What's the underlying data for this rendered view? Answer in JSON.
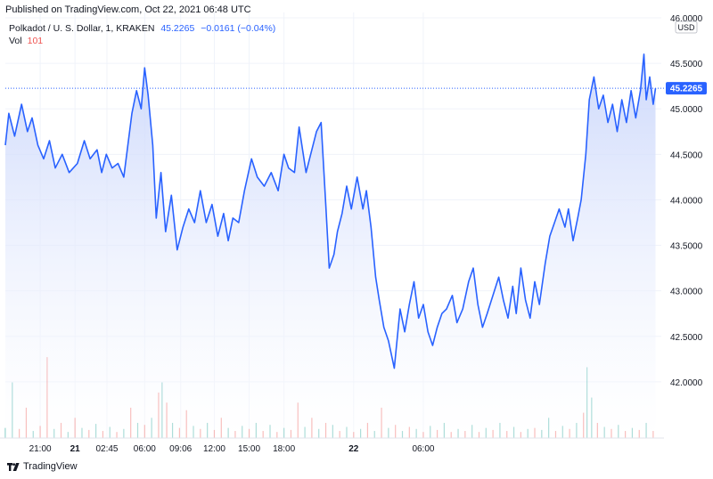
{
  "header": {
    "published": "Published on TradingView.com, Oct 22, 2021 06:48 UTC",
    "symbol": "Polkadot / U. S. Dollar, 1, KRAKEN",
    "last": "45.2265",
    "change": "−0.0161 (−0.04%)",
    "vol_label": "Vol",
    "vol_value": "101"
  },
  "brand": {
    "name": "TradingView",
    "icon": "tradingview-logo-icon"
  },
  "colors": {
    "line": "#2962ff",
    "fill_top": "#c7d4fb",
    "fill_bottom": "#ffffff",
    "vol_up": "#26a69a",
    "vol_down": "#ef5350",
    "price_tag": "#2962ff"
  },
  "chart_data": {
    "type": "area",
    "currency": "USD",
    "last_price_label": "45.2265",
    "last_price": 45.2265,
    "ylim": [
      41.5,
      46.0
    ],
    "y_ticks": [
      "46.0000",
      "45.5000",
      "45.0000",
      "44.5000",
      "44.0000",
      "43.5000",
      "43.0000",
      "42.5000",
      "42.0000"
    ],
    "y_tick_values": [
      46.0,
      45.5,
      45.0,
      44.5,
      44.0,
      43.5,
      43.0,
      42.5,
      42.0
    ],
    "x_ticks": [
      "21:00",
      "21",
      "02:45",
      "06:00",
      "09:06",
      "12:00",
      "15:00",
      "18:00",
      "22",
      "06:00"
    ],
    "x_tick_hours": [
      21.0,
      24.0,
      26.75,
      30.0,
      33.1,
      36.0,
      39.0,
      42.0,
      48.0,
      54.0
    ],
    "x_bold_ticks": [
      "21",
      "22"
    ],
    "grid": true,
    "series": [
      {
        "points": [
          [
            18.0,
            44.6
          ],
          [
            18.3,
            44.95
          ],
          [
            18.8,
            44.7
          ],
          [
            19.4,
            45.05
          ],
          [
            19.9,
            44.75
          ],
          [
            20.3,
            44.9
          ],
          [
            20.8,
            44.6
          ],
          [
            21.3,
            44.45
          ],
          [
            21.8,
            44.65
          ],
          [
            22.3,
            44.35
          ],
          [
            22.9,
            44.5
          ],
          [
            23.5,
            44.3
          ],
          [
            24.2,
            44.4
          ],
          [
            24.8,
            44.65
          ],
          [
            25.3,
            44.45
          ],
          [
            25.9,
            44.55
          ],
          [
            26.3,
            44.3
          ],
          [
            26.7,
            44.5
          ],
          [
            27.2,
            44.35
          ],
          [
            27.7,
            44.4
          ],
          [
            28.2,
            44.25
          ],
          [
            28.9,
            44.95
          ],
          [
            29.3,
            45.2
          ],
          [
            29.7,
            45.0
          ],
          [
            30.0,
            45.45
          ],
          [
            30.3,
            45.15
          ],
          [
            30.7,
            44.6
          ],
          [
            31.0,
            43.8
          ],
          [
            31.4,
            44.3
          ],
          [
            31.8,
            43.65
          ],
          [
            32.3,
            44.05
          ],
          [
            32.8,
            43.45
          ],
          [
            33.3,
            43.7
          ],
          [
            33.8,
            43.9
          ],
          [
            34.3,
            43.75
          ],
          [
            34.8,
            44.1
          ],
          [
            35.3,
            43.75
          ],
          [
            35.8,
            43.95
          ],
          [
            36.3,
            43.6
          ],
          [
            36.8,
            43.85
          ],
          [
            37.2,
            43.55
          ],
          [
            37.6,
            43.8
          ],
          [
            38.1,
            43.75
          ],
          [
            38.6,
            44.1
          ],
          [
            39.2,
            44.45
          ],
          [
            39.7,
            44.25
          ],
          [
            40.3,
            44.15
          ],
          [
            40.9,
            44.3
          ],
          [
            41.5,
            44.1
          ],
          [
            42.0,
            44.5
          ],
          [
            42.4,
            44.35
          ],
          [
            42.9,
            44.3
          ],
          [
            43.3,
            44.8
          ],
          [
            43.6,
            44.55
          ],
          [
            43.9,
            44.3
          ],
          [
            44.3,
            44.5
          ],
          [
            44.8,
            44.75
          ],
          [
            45.2,
            44.85
          ],
          [
            45.6,
            43.95
          ],
          [
            45.9,
            43.25
          ],
          [
            46.3,
            43.4
          ],
          [
            46.6,
            43.65
          ],
          [
            47.0,
            43.85
          ],
          [
            47.4,
            44.15
          ],
          [
            47.8,
            43.9
          ],
          [
            48.3,
            44.25
          ],
          [
            48.8,
            43.9
          ],
          [
            49.1,
            44.1
          ],
          [
            49.5,
            43.7
          ],
          [
            49.9,
            43.15
          ],
          [
            50.2,
            42.9
          ],
          [
            50.6,
            42.6
          ],
          [
            51.0,
            42.45
          ],
          [
            51.5,
            42.15
          ],
          [
            52.0,
            42.8
          ],
          [
            52.4,
            42.55
          ],
          [
            52.8,
            42.85
          ],
          [
            53.2,
            43.1
          ],
          [
            53.6,
            42.7
          ],
          [
            54.0,
            42.85
          ],
          [
            54.4,
            42.55
          ],
          [
            54.8,
            42.4
          ],
          [
            55.2,
            42.6
          ],
          [
            55.6,
            42.75
          ],
          [
            56.0,
            42.8
          ],
          [
            56.5,
            42.95
          ],
          [
            56.9,
            42.65
          ],
          [
            57.4,
            42.8
          ],
          [
            57.9,
            43.1
          ],
          [
            58.3,
            43.25
          ],
          [
            58.7,
            42.85
          ],
          [
            59.1,
            42.6
          ],
          [
            59.5,
            42.75
          ],
          [
            60.0,
            42.95
          ],
          [
            60.5,
            43.15
          ],
          [
            60.9,
            42.9
          ],
          [
            61.3,
            42.7
          ],
          [
            61.7,
            43.05
          ],
          [
            62.0,
            42.75
          ],
          [
            62.4,
            43.25
          ],
          [
            62.8,
            42.9
          ],
          [
            63.2,
            42.7
          ],
          [
            63.6,
            43.1
          ],
          [
            64.0,
            42.85
          ],
          [
            64.5,
            43.3
          ],
          [
            64.9,
            43.6
          ],
          [
            65.3,
            43.75
          ],
          [
            65.7,
            43.9
          ],
          [
            66.2,
            43.7
          ],
          [
            66.5,
            43.9
          ],
          [
            66.9,
            43.55
          ],
          [
            67.3,
            43.8
          ],
          [
            67.6,
            44.0
          ],
          [
            68.0,
            44.5
          ],
          [
            68.3,
            45.1
          ],
          [
            68.7,
            45.35
          ],
          [
            69.1,
            45.0
          ],
          [
            69.5,
            45.15
          ],
          [
            69.9,
            44.85
          ],
          [
            70.3,
            45.05
          ],
          [
            70.7,
            44.75
          ],
          [
            71.1,
            45.1
          ],
          [
            71.5,
            44.85
          ],
          [
            71.9,
            45.2
          ],
          [
            72.3,
            44.9
          ],
          [
            72.7,
            45.2
          ],
          [
            73.0,
            45.6
          ],
          [
            73.2,
            45.1
          ],
          [
            73.5,
            45.35
          ],
          [
            73.8,
            45.05
          ],
          [
            74.0,
            45.2265
          ]
        ]
      }
    ],
    "volume": {
      "x_range": [
        18.0,
        74.0
      ],
      "vol_max": 220,
      "bars": [
        {
          "t": 18.0,
          "v": 20,
          "d": "up"
        },
        {
          "t": 18.6,
          "v": 110,
          "d": "up"
        },
        {
          "t": 19.2,
          "v": 18,
          "d": "down"
        },
        {
          "t": 19.8,
          "v": 60,
          "d": "down"
        },
        {
          "t": 20.4,
          "v": 14,
          "d": "up"
        },
        {
          "t": 21.0,
          "v": 24,
          "d": "down"
        },
        {
          "t": 21.6,
          "v": 160,
          "d": "down"
        },
        {
          "t": 22.2,
          "v": 18,
          "d": "up"
        },
        {
          "t": 22.8,
          "v": 30,
          "d": "down"
        },
        {
          "t": 23.4,
          "v": 12,
          "d": "up"
        },
        {
          "t": 24.0,
          "v": 40,
          "d": "down"
        },
        {
          "t": 24.6,
          "v": 20,
          "d": "up"
        },
        {
          "t": 25.2,
          "v": 16,
          "d": "down"
        },
        {
          "t": 25.8,
          "v": 28,
          "d": "up"
        },
        {
          "t": 26.4,
          "v": 14,
          "d": "down"
        },
        {
          "t": 27.0,
          "v": 22,
          "d": "up"
        },
        {
          "t": 27.6,
          "v": 12,
          "d": "down"
        },
        {
          "t": 28.2,
          "v": 18,
          "d": "up"
        },
        {
          "t": 28.8,
          "v": 60,
          "d": "down"
        },
        {
          "t": 29.4,
          "v": 30,
          "d": "up"
        },
        {
          "t": 30.0,
          "v": 26,
          "d": "down"
        },
        {
          "t": 30.6,
          "v": 40,
          "d": "up"
        },
        {
          "t": 31.2,
          "v": 90,
          "d": "down"
        },
        {
          "t": 31.5,
          "v": 110,
          "d": "up"
        },
        {
          "t": 31.9,
          "v": 70,
          "d": "down"
        },
        {
          "t": 32.4,
          "v": 30,
          "d": "up"
        },
        {
          "t": 33.0,
          "v": 20,
          "d": "down"
        },
        {
          "t": 33.6,
          "v": 55,
          "d": "down"
        },
        {
          "t": 34.2,
          "v": 24,
          "d": "up"
        },
        {
          "t": 34.8,
          "v": 18,
          "d": "down"
        },
        {
          "t": 35.4,
          "v": 30,
          "d": "up"
        },
        {
          "t": 36.0,
          "v": 16,
          "d": "down"
        },
        {
          "t": 36.6,
          "v": 40,
          "d": "down"
        },
        {
          "t": 37.2,
          "v": 20,
          "d": "up"
        },
        {
          "t": 37.8,
          "v": 14,
          "d": "down"
        },
        {
          "t": 38.4,
          "v": 24,
          "d": "up"
        },
        {
          "t": 39.0,
          "v": 18,
          "d": "down"
        },
        {
          "t": 39.6,
          "v": 30,
          "d": "up"
        },
        {
          "t": 40.2,
          "v": 14,
          "d": "down"
        },
        {
          "t": 40.8,
          "v": 26,
          "d": "up"
        },
        {
          "t": 41.4,
          "v": 12,
          "d": "down"
        },
        {
          "t": 42.0,
          "v": 20,
          "d": "up"
        },
        {
          "t": 42.6,
          "v": 16,
          "d": "down"
        },
        {
          "t": 43.2,
          "v": 70,
          "d": "down"
        },
        {
          "t": 43.8,
          "v": 22,
          "d": "up"
        },
        {
          "t": 44.4,
          "v": 40,
          "d": "down"
        },
        {
          "t": 45.0,
          "v": 18,
          "d": "up"
        },
        {
          "t": 45.6,
          "v": 30,
          "d": "down"
        },
        {
          "t": 46.2,
          "v": 26,
          "d": "up"
        },
        {
          "t": 46.8,
          "v": 14,
          "d": "down"
        },
        {
          "t": 47.4,
          "v": 22,
          "d": "up"
        },
        {
          "t": 48.0,
          "v": 12,
          "d": "down"
        },
        {
          "t": 48.6,
          "v": 18,
          "d": "up"
        },
        {
          "t": 49.2,
          "v": 30,
          "d": "down"
        },
        {
          "t": 49.8,
          "v": 14,
          "d": "up"
        },
        {
          "t": 50.4,
          "v": 60,
          "d": "down"
        },
        {
          "t": 51.0,
          "v": 20,
          "d": "up"
        },
        {
          "t": 51.6,
          "v": 26,
          "d": "down"
        },
        {
          "t": 52.2,
          "v": 14,
          "d": "up"
        },
        {
          "t": 52.8,
          "v": 22,
          "d": "down"
        },
        {
          "t": 53.4,
          "v": 18,
          "d": "up"
        },
        {
          "t": 54.0,
          "v": 12,
          "d": "down"
        },
        {
          "t": 54.6,
          "v": 24,
          "d": "up"
        },
        {
          "t": 55.2,
          "v": 16,
          "d": "down"
        },
        {
          "t": 55.8,
          "v": 30,
          "d": "up"
        },
        {
          "t": 56.4,
          "v": 12,
          "d": "down"
        },
        {
          "t": 57.0,
          "v": 18,
          "d": "up"
        },
        {
          "t": 57.6,
          "v": 14,
          "d": "down"
        },
        {
          "t": 58.2,
          "v": 26,
          "d": "up"
        },
        {
          "t": 58.8,
          "v": 12,
          "d": "down"
        },
        {
          "t": 59.4,
          "v": 20,
          "d": "up"
        },
        {
          "t": 60.0,
          "v": 16,
          "d": "down"
        },
        {
          "t": 60.6,
          "v": 30,
          "d": "up"
        },
        {
          "t": 61.2,
          "v": 14,
          "d": "down"
        },
        {
          "t": 61.8,
          "v": 22,
          "d": "up"
        },
        {
          "t": 62.4,
          "v": 12,
          "d": "down"
        },
        {
          "t": 63.0,
          "v": 18,
          "d": "up"
        },
        {
          "t": 63.6,
          "v": 20,
          "d": "down"
        },
        {
          "t": 64.2,
          "v": 16,
          "d": "up"
        },
        {
          "t": 64.8,
          "v": 40,
          "d": "up"
        },
        {
          "t": 65.4,
          "v": 14,
          "d": "down"
        },
        {
          "t": 66.0,
          "v": 24,
          "d": "up"
        },
        {
          "t": 66.6,
          "v": 18,
          "d": "down"
        },
        {
          "t": 67.2,
          "v": 30,
          "d": "up"
        },
        {
          "t": 67.8,
          "v": 50,
          "d": "down"
        },
        {
          "t": 68.1,
          "v": 140,
          "d": "up"
        },
        {
          "t": 68.5,
          "v": 80,
          "d": "up"
        },
        {
          "t": 69.0,
          "v": 30,
          "d": "down"
        },
        {
          "t": 69.6,
          "v": 22,
          "d": "up"
        },
        {
          "t": 70.2,
          "v": 18,
          "d": "down"
        },
        {
          "t": 70.8,
          "v": 26,
          "d": "up"
        },
        {
          "t": 71.4,
          "v": 14,
          "d": "down"
        },
        {
          "t": 72.0,
          "v": 20,
          "d": "up"
        },
        {
          "t": 72.6,
          "v": 16,
          "d": "down"
        },
        {
          "t": 73.2,
          "v": 30,
          "d": "up"
        },
        {
          "t": 73.8,
          "v": 14,
          "d": "down"
        }
      ]
    }
  }
}
